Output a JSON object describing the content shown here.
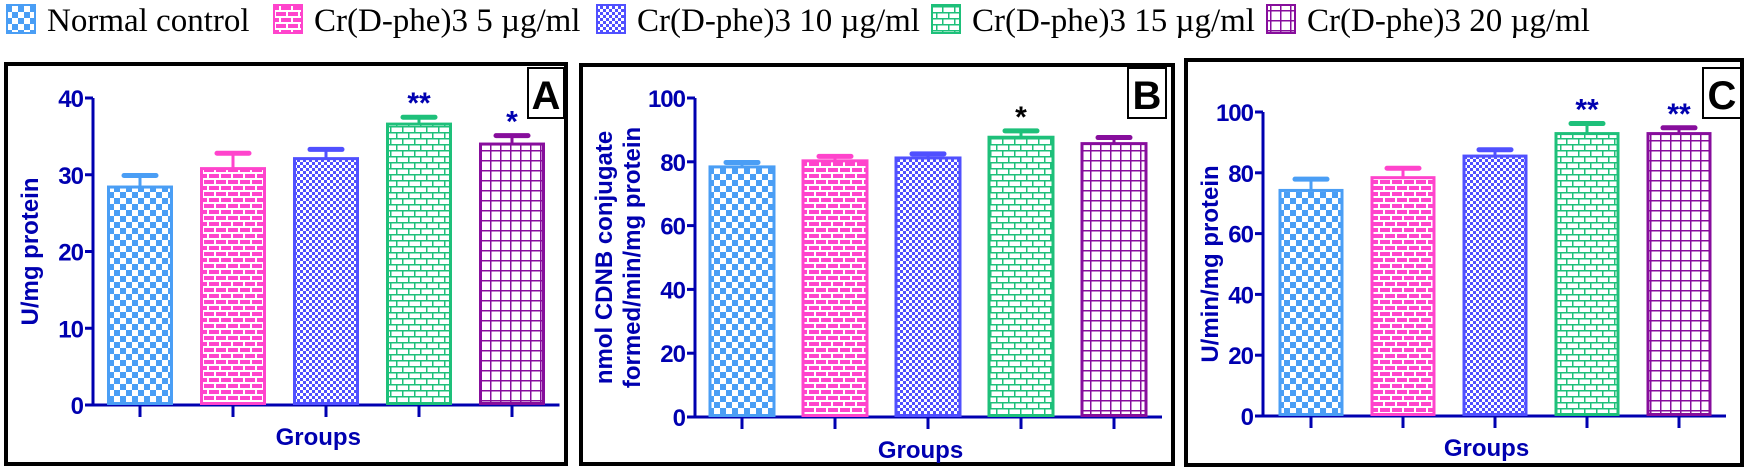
{
  "legend": [
    {
      "label": "Normal control",
      "color": "#4a9ef5",
      "pattern": "checker"
    },
    {
      "label": "Cr(D-phe)3 5 µg/ml",
      "color": "#ff44cc",
      "pattern": "brick"
    },
    {
      "label": "Cr(D-phe)3 10 µg/ml",
      "color": "#5050ff",
      "pattern": "finechecker"
    },
    {
      "label": "Cr(D-phe)3 15 µg/ml",
      "color": "#1ec07a",
      "pattern": "smallbrick"
    },
    {
      "label": "Cr(D-phe)3 20 µg/ml",
      "color": "#870e9c",
      "pattern": "grid"
    }
  ],
  "axis_color": "#0000b0",
  "chart_data": [
    {
      "type": "bar",
      "panel": "A",
      "xlabel": "Groups",
      "ylabel": [
        "U/mg protein"
      ],
      "ylim": [
        0,
        40
      ],
      "yticks": [
        "0",
        "10",
        "20",
        "30",
        "40"
      ],
      "values": [
        28.4,
        30.8,
        32.1,
        36.6,
        34.0
      ],
      "errors": [
        1.5,
        2.0,
        1.2,
        0.9,
        1.1
      ],
      "significance": [
        "",
        "",
        "",
        "**",
        "*"
      ],
      "significance_color": "#0000b0"
    },
    {
      "type": "bar",
      "panel": "B",
      "xlabel": "Groups",
      "ylabel": [
        "nmol CDNB conjugate",
        "formed/min/mg protein"
      ],
      "ylim": [
        0,
        100
      ],
      "yticks": [
        "0",
        "20",
        "40",
        "60",
        "80",
        "100"
      ],
      "values": [
        78.4,
        80.3,
        81.2,
        87.7,
        85.7
      ],
      "errors": [
        1.4,
        1.4,
        1.3,
        2.0,
        1.9
      ],
      "significance": [
        "",
        "",
        "",
        "*",
        ""
      ],
      "significance_color": "#000000"
    },
    {
      "type": "bar",
      "panel": "C",
      "xlabel": "Groups",
      "ylabel": [
        "U/min/mg protein"
      ],
      "ylim": [
        0,
        100
      ],
      "yticks": [
        "0",
        "20",
        "40",
        "60",
        "80",
        "100"
      ],
      "values": [
        74.2,
        78.4,
        85.5,
        92.9,
        92.9
      ],
      "errors": [
        3.7,
        3.1,
        2.1,
        3.3,
        1.9
      ],
      "significance": [
        "",
        "",
        "",
        "**",
        "**"
      ],
      "significance_color": "#0000b0"
    }
  ]
}
